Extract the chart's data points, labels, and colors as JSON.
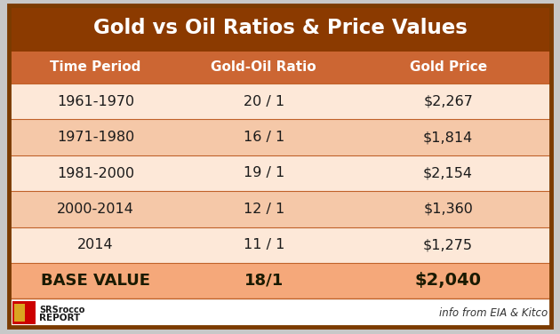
{
  "title": "Gold vs Oil Ratios & Price Values",
  "title_bg": "#8B3A00",
  "title_color": "#FFFFFF",
  "header_bg": "#CC6633",
  "header_color": "#FFFFFF",
  "header_labels": [
    "Time Period",
    "Gold-Oil Ratio",
    "Gold Price"
  ],
  "row_bg_light": "#FDE8D8",
  "row_bg_dark": "#F5C8A8",
  "row_text_color": "#1A1A1A",
  "footer_bg": "#F5A87A",
  "footer_text_color": "#1A1A00",
  "outer_border_color": "#7B3B00",
  "inner_border_color": "#C0622A",
  "rows": [
    [
      "1961-1970",
      "20 / 1",
      "$2,267"
    ],
    [
      "1971-1980",
      "16 / 1",
      "$1,814"
    ],
    [
      "1981-2000",
      "19 / 1",
      "$2,154"
    ],
    [
      "2000-2014",
      "12 / 1",
      "$1,360"
    ],
    [
      "2014",
      "11 / 1",
      "$1,275"
    ]
  ],
  "footer_row": [
    "BASE VALUE",
    "18/1",
    "$2,040"
  ],
  "bottom_right_text": "info from EIA & Kitco",
  "bg_color": "#FFFFFF",
  "outer_bg": "#C8C8C8",
  "fig_width": 6.3,
  "fig_height": 3.76,
  "dpi": 100
}
